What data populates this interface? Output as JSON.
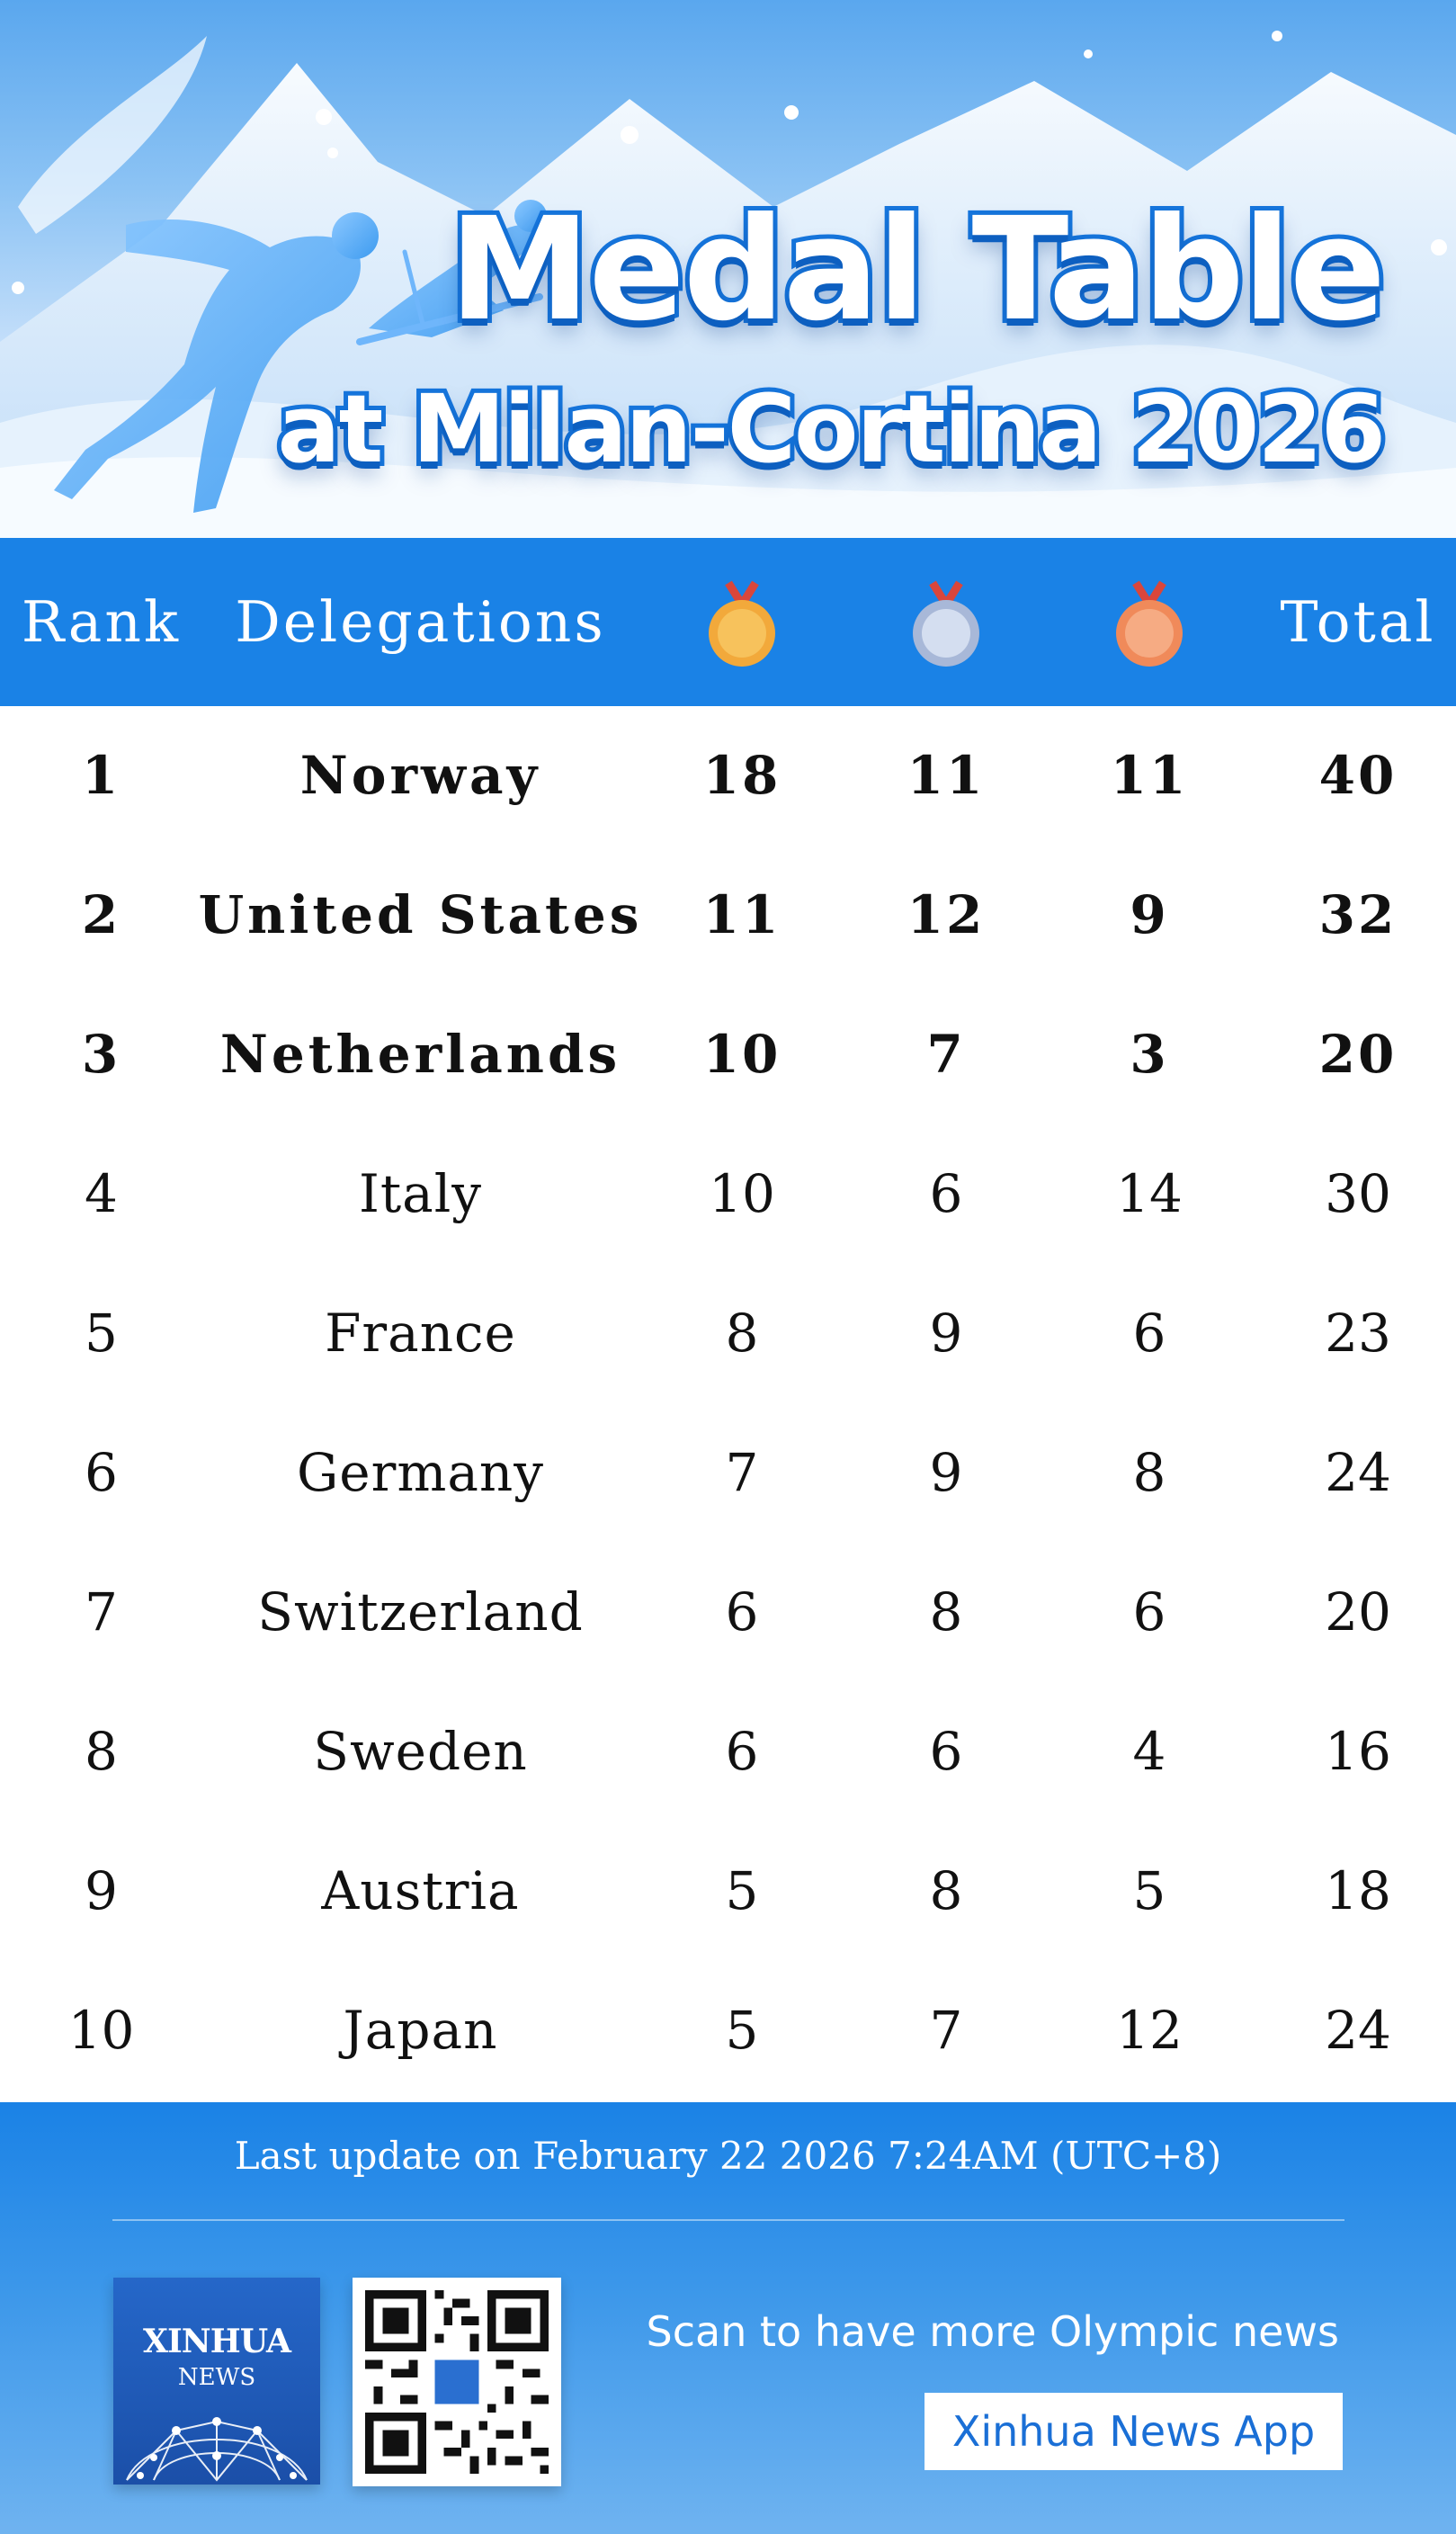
{
  "banner": {
    "title": "Medal Table",
    "subtitle": "at Milan-Cortina 2026"
  },
  "table": {
    "headers": {
      "rank": "Rank",
      "delegations": "Delegations",
      "gold_icon": "gold-medal-icon",
      "silver_icon": "silver-medal-icon",
      "bronze_icon": "bronze-medal-icon",
      "total": "Total"
    },
    "rows": [
      {
        "rank": "1",
        "delegation": "Norway",
        "gold": "18",
        "silver": "11",
        "bronze": "11",
        "total": "40"
      },
      {
        "rank": "2",
        "delegation": "United States",
        "gold": "11",
        "silver": "12",
        "bronze": "9",
        "total": "32"
      },
      {
        "rank": "3",
        "delegation": "Netherlands",
        "gold": "10",
        "silver": "7",
        "bronze": "3",
        "total": "20"
      },
      {
        "rank": "4",
        "delegation": "Italy",
        "gold": "10",
        "silver": "6",
        "bronze": "14",
        "total": "30"
      },
      {
        "rank": "5",
        "delegation": "France",
        "gold": "8",
        "silver": "9",
        "bronze": "6",
        "total": "23"
      },
      {
        "rank": "6",
        "delegation": "Germany",
        "gold": "7",
        "silver": "9",
        "bronze": "8",
        "total": "24"
      },
      {
        "rank": "7",
        "delegation": "Switzerland",
        "gold": "6",
        "silver": "8",
        "bronze": "6",
        "total": "20"
      },
      {
        "rank": "8",
        "delegation": "Sweden",
        "gold": "6",
        "silver": "6",
        "bronze": "4",
        "total": "16"
      },
      {
        "rank": "9",
        "delegation": "Austria",
        "gold": "5",
        "silver": "8",
        "bronze": "5",
        "total": "18"
      },
      {
        "rank": "10",
        "delegation": "Japan",
        "gold": "5",
        "silver": "7",
        "bronze": "12",
        "total": "24"
      }
    ]
  },
  "footer": {
    "last_update": "Last update on February 22 2026 7:24AM (UTC+8)",
    "logo_name": "XINHUA",
    "logo_sub": "NEWS",
    "scan_text": "Scan to have more Olympic news",
    "app_button": "Xinhua News App"
  },
  "colors": {
    "header_blue": "#1a82e6",
    "gold": "#f2a93b",
    "silver": "#a8b8d8",
    "bronze": "#f08a5a"
  }
}
